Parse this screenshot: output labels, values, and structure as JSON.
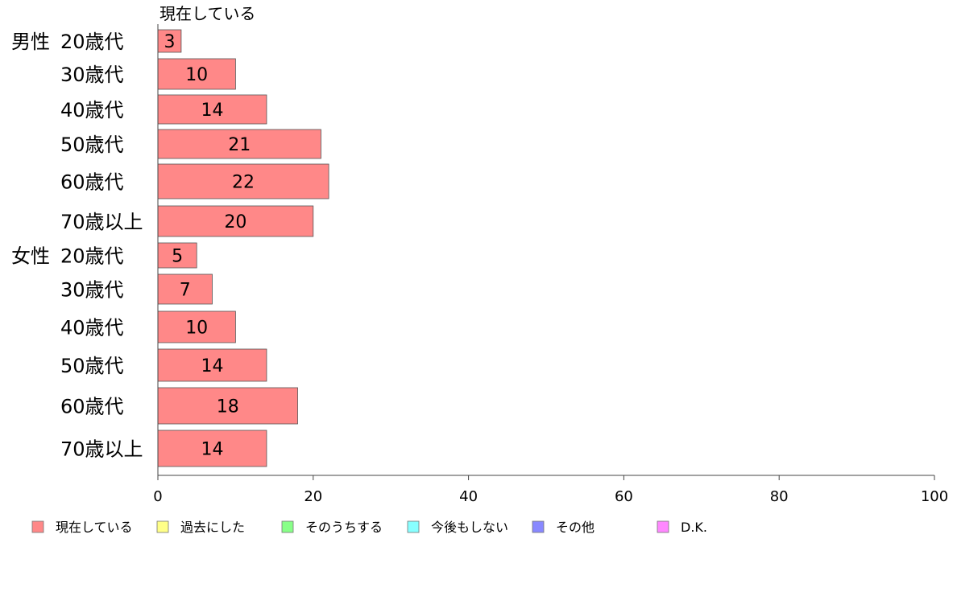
{
  "chart_data": {
    "type": "bar",
    "orientation": "horizontal",
    "series_header": "現在している",
    "groups": [
      {
        "label": "男性",
        "start_index": 0
      },
      {
        "label": "女性",
        "start_index": 6
      }
    ],
    "categories": [
      "20歳代",
      "30歳代",
      "40歳代",
      "50歳代",
      "60歳代",
      "70歳以上",
      "20歳代",
      "30歳代",
      "40歳代",
      "50歳代",
      "60歳代",
      "70歳以上"
    ],
    "series": [
      {
        "name": "現在している",
        "color": "#ff8888",
        "values": [
          3,
          10,
          14,
          21,
          22,
          20,
          5,
          7,
          10,
          14,
          18,
          14
        ]
      }
    ],
    "xlim": [
      0,
      100
    ],
    "xticks": [
      0,
      20,
      40,
      60,
      80,
      100
    ],
    "grid": false,
    "legend_position": "bottom",
    "legend": [
      {
        "label": "現在している",
        "color": "#ff8888"
      },
      {
        "label": "過去にした",
        "color": "#ffff88"
      },
      {
        "label": "そのうちする",
        "color": "#88ff88"
      },
      {
        "label": "今後もしない",
        "color": "#88ffff"
      },
      {
        "label": "その他",
        "color": "#8888ff"
      },
      {
        "label": "D.K.",
        "color": "#ff88ff"
      }
    ]
  }
}
